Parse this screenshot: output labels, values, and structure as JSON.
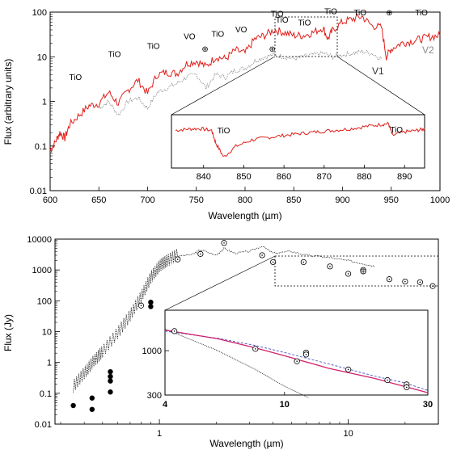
{
  "chart_data": [
    {
      "type": "line",
      "xlabel": "Wavelength (µm)",
      "ylabel": "Flux (arbitrary units)",
      "xlim": [
        600,
        1000
      ],
      "ylim": [
        0.01,
        100
      ],
      "yscale": "log",
      "x_ticks": [
        "600",
        "650",
        "700",
        "750",
        "800",
        "850",
        "900",
        "950",
        "1000"
      ],
      "y_ticks": [
        "0.01",
        "0.1",
        "1",
        "10",
        "100"
      ],
      "series": [
        {
          "name": "V2",
          "color": "#e0201b",
          "x": [
            600,
            605,
            610,
            615,
            620,
            630,
            640,
            650,
            660,
            670,
            680,
            690,
            700,
            710,
            720,
            730,
            740,
            750,
            760,
            770,
            780,
            790,
            800,
            810,
            820,
            830,
            840,
            850,
            860,
            870,
            880,
            885,
            890,
            900,
            910,
            920,
            930,
            940,
            945,
            950,
            960,
            970,
            980,
            990,
            1000
          ],
          "y": [
            0.08,
            0.12,
            0.2,
            0.15,
            0.3,
            0.5,
            0.8,
            0.9,
            1.6,
            0.9,
            1.8,
            3.0,
            1.5,
            4.0,
            4.5,
            4.2,
            7.0,
            8.0,
            6.0,
            10.0,
            9.0,
            14.0,
            12.0,
            25.0,
            30.0,
            40.0,
            35.0,
            30.0,
            30.0,
            35.0,
            45.0,
            25.0,
            40.0,
            60.0,
            70.0,
            80.0,
            50.0,
            45.0,
            10.0,
            15.0,
            20.0,
            22.0,
            25.0,
            28.0,
            30.0
          ]
        },
        {
          "name": "V1",
          "color": "#8a8a8a",
          "x": [
            650,
            660,
            670,
            680,
            690,
            700,
            710,
            720,
            730,
            740,
            750,
            760,
            770,
            780,
            790,
            800,
            810,
            820,
            830,
            840,
            850,
            860,
            870,
            880,
            890,
            900,
            910,
            920,
            930,
            940
          ],
          "y": [
            0.7,
            1.0,
            0.5,
            1.0,
            1.2,
            0.7,
            1.6,
            2.0,
            2.5,
            3.5,
            4.0,
            2.0,
            4.0,
            3.5,
            5.0,
            5.5,
            8.0,
            10.0,
            11.0,
            10.0,
            9.0,
            10.0,
            11.0,
            12.0,
            10.0,
            11.0,
            12.0,
            13.0,
            12.0,
            9.0
          ]
        }
      ],
      "annotations": [
        {
          "text": "TiO",
          "x": 626,
          "y": 3.0
        },
        {
          "text": "TiO",
          "x": 666,
          "y": 10.0
        },
        {
          "text": "TiO",
          "x": 706,
          "y": 15.0
        },
        {
          "text": "VO",
          "x": 743,
          "y": 25.0
        },
        {
          "text": "⊕",
          "x": 759,
          "y": 13.0
        },
        {
          "text": "TiO",
          "x": 772,
          "y": 28.0
        },
        {
          "text": "VO",
          "x": 796,
          "y": 35.0
        },
        {
          "text": "⊕",
          "x": 828,
          "y": 13.0
        },
        {
          "text": "TiO",
          "x": 833,
          "y": 80.0
        },
        {
          "text": "TiO",
          "x": 838,
          "y": 58.0
        },
        {
          "text": "TiO",
          "x": 861,
          "y": 50.0
        },
        {
          "text": "TiO",
          "x": 888,
          "y": 90.0
        },
        {
          "text": "TiO",
          "x": 918,
          "y": 85.0
        },
        {
          "text": "⊕",
          "x": 948,
          "y": 85.0
        },
        {
          "text": "TiO",
          "x": 981,
          "y": 85.0
        }
      ],
      "inset": {
        "xlim": [
          832,
          895
        ],
        "x_ticks": [
          "840",
          "850",
          "860",
          "870",
          "880",
          "890"
        ],
        "series": [
          {
            "name": "V2",
            "color": "#e0201b",
            "x": [
              833,
              836,
              839,
              842,
              843,
              845,
              848,
              852,
              856,
              860,
              864,
              868,
              872,
              876,
              880,
              884,
              886,
              887,
              890,
              893,
              895
            ],
            "y": [
              0.55,
              0.6,
              0.62,
              0.55,
              0.25,
              0.1,
              0.2,
              0.3,
              0.35,
              0.4,
              0.45,
              0.5,
              0.55,
              0.6,
              0.7,
              0.8,
              0.85,
              0.4,
              0.5,
              0.55,
              0.6
            ]
          }
        ],
        "annotations": [
          {
            "text": "TiO",
            "x": 845,
            "y": 0.85
          },
          {
            "text": "TiO",
            "x": 888,
            "y": 0.9
          }
        ]
      }
    },
    {
      "type": "scatter",
      "xlabel": "Wavelength (µm)",
      "ylabel": "Flux (Jy)",
      "xscale": "log",
      "yscale": "log",
      "xlim": [
        0.28,
        30
      ],
      "ylim": [
        0.01,
        10000
      ],
      "x_ticks": [
        "1",
        "10"
      ],
      "y_ticks": [
        "0.01",
        "0.1",
        "1",
        "10",
        "100",
        "1000",
        "10000"
      ],
      "model": {
        "x": [
          0.35,
          0.4,
          0.45,
          0.5,
          0.6,
          0.7,
          0.8,
          0.9,
          1.0,
          1.1,
          1.25,
          1.5,
          1.65,
          2.0,
          2.2,
          2.5,
          3.0,
          3.5,
          4.0,
          5.0,
          6.0,
          8.0,
          10.0,
          12.0,
          14.0
        ],
        "y": [
          0.15,
          0.4,
          1.0,
          2.0,
          8.0,
          30.0,
          120.0,
          500.0,
          1200.0,
          1800.0,
          2800.0,
          3200.0,
          4500.0,
          3000.0,
          5000.0,
          3500.0,
          4000.0,
          6000.0,
          3500.0,
          4000.0,
          3000.0,
          2500.0,
          2000.0,
          1600.0,
          1300.0
        ]
      },
      "filled_points": {
        "x": [
          0.35,
          0.44,
          0.44,
          0.55,
          0.55,
          0.55,
          0.55,
          0.9,
          0.9
        ],
        "y": [
          0.04,
          0.07,
          0.03,
          0.5,
          0.35,
          0.25,
          0.11,
          90.0,
          65.0
        ]
      },
      "open_points": {
        "x": [
          0.8,
          1.25,
          1.65,
          2.2,
          3.5,
          4.0,
          5.8,
          8.0,
          10.0,
          12.0,
          16.5,
          20.0,
          24.0,
          28.0
        ],
        "y": [
          70.0,
          2200.0,
          3300.0,
          7500.0,
          3000.0,
          1800.0,
          1800.0,
          1300.0,
          750.0,
          1000.0,
          500.0,
          420.0,
          400.0,
          300.0
        ]
      },
      "plus_points": {
        "x": [
          12.0
        ],
        "y": [
          900.0
        ]
      },
      "inset": {
        "xlim": [
          4,
          30
        ],
        "ylim": [
          300,
          3000
        ],
        "x_ticks": [
          "4",
          "10",
          "30"
        ],
        "y_ticks": [
          "300",
          "1000"
        ],
        "photosphere": {
          "x": [
            4.0,
            6.0,
            8.0,
            10.0,
            12.0
          ],
          "y": [
            1800.0,
            1000.0,
            600.0,
            380.0,
            280.0
          ]
        },
        "model_dashed": {
          "x": [
            4.0,
            6.0,
            8.0,
            10.0,
            14.0,
            20.0,
            25.0,
            30.0
          ],
          "y": [
            1700.0,
            1400.0,
            1150.0,
            950.0,
            700.0,
            500.0,
            420.0,
            340.0
          ]
        },
        "model_solid": {
          "x": [
            4.0,
            6.0,
            8.0,
            10.0,
            14.0,
            20.0,
            25.0,
            30.0
          ],
          "y": [
            1750.0,
            1380.0,
            1080.0,
            870.0,
            620.0,
            470.0,
            380.0,
            320.0
          ]
        },
        "points": {
          "x": [
            4.3,
            8.0,
            11.0,
            11.8,
            11.8,
            16.3,
            22.0,
            25.5,
            25.5
          ],
          "y": [
            1700.0,
            1050.0,
            750.0,
            950.0,
            900.0,
            600.0,
            450.0,
            400.0,
            370.0
          ]
        }
      }
    }
  ],
  "panels": {
    "spectrum": {
      "xlabel": "Wavelength (µm)",
      "ylabel": "Flux (arbitrary units)",
      "series_labels": [
        "V1",
        "V2"
      ]
    },
    "sed": {
      "xlabel": "Wavelength (µm)",
      "ylabel": "Flux (Jy)"
    }
  }
}
